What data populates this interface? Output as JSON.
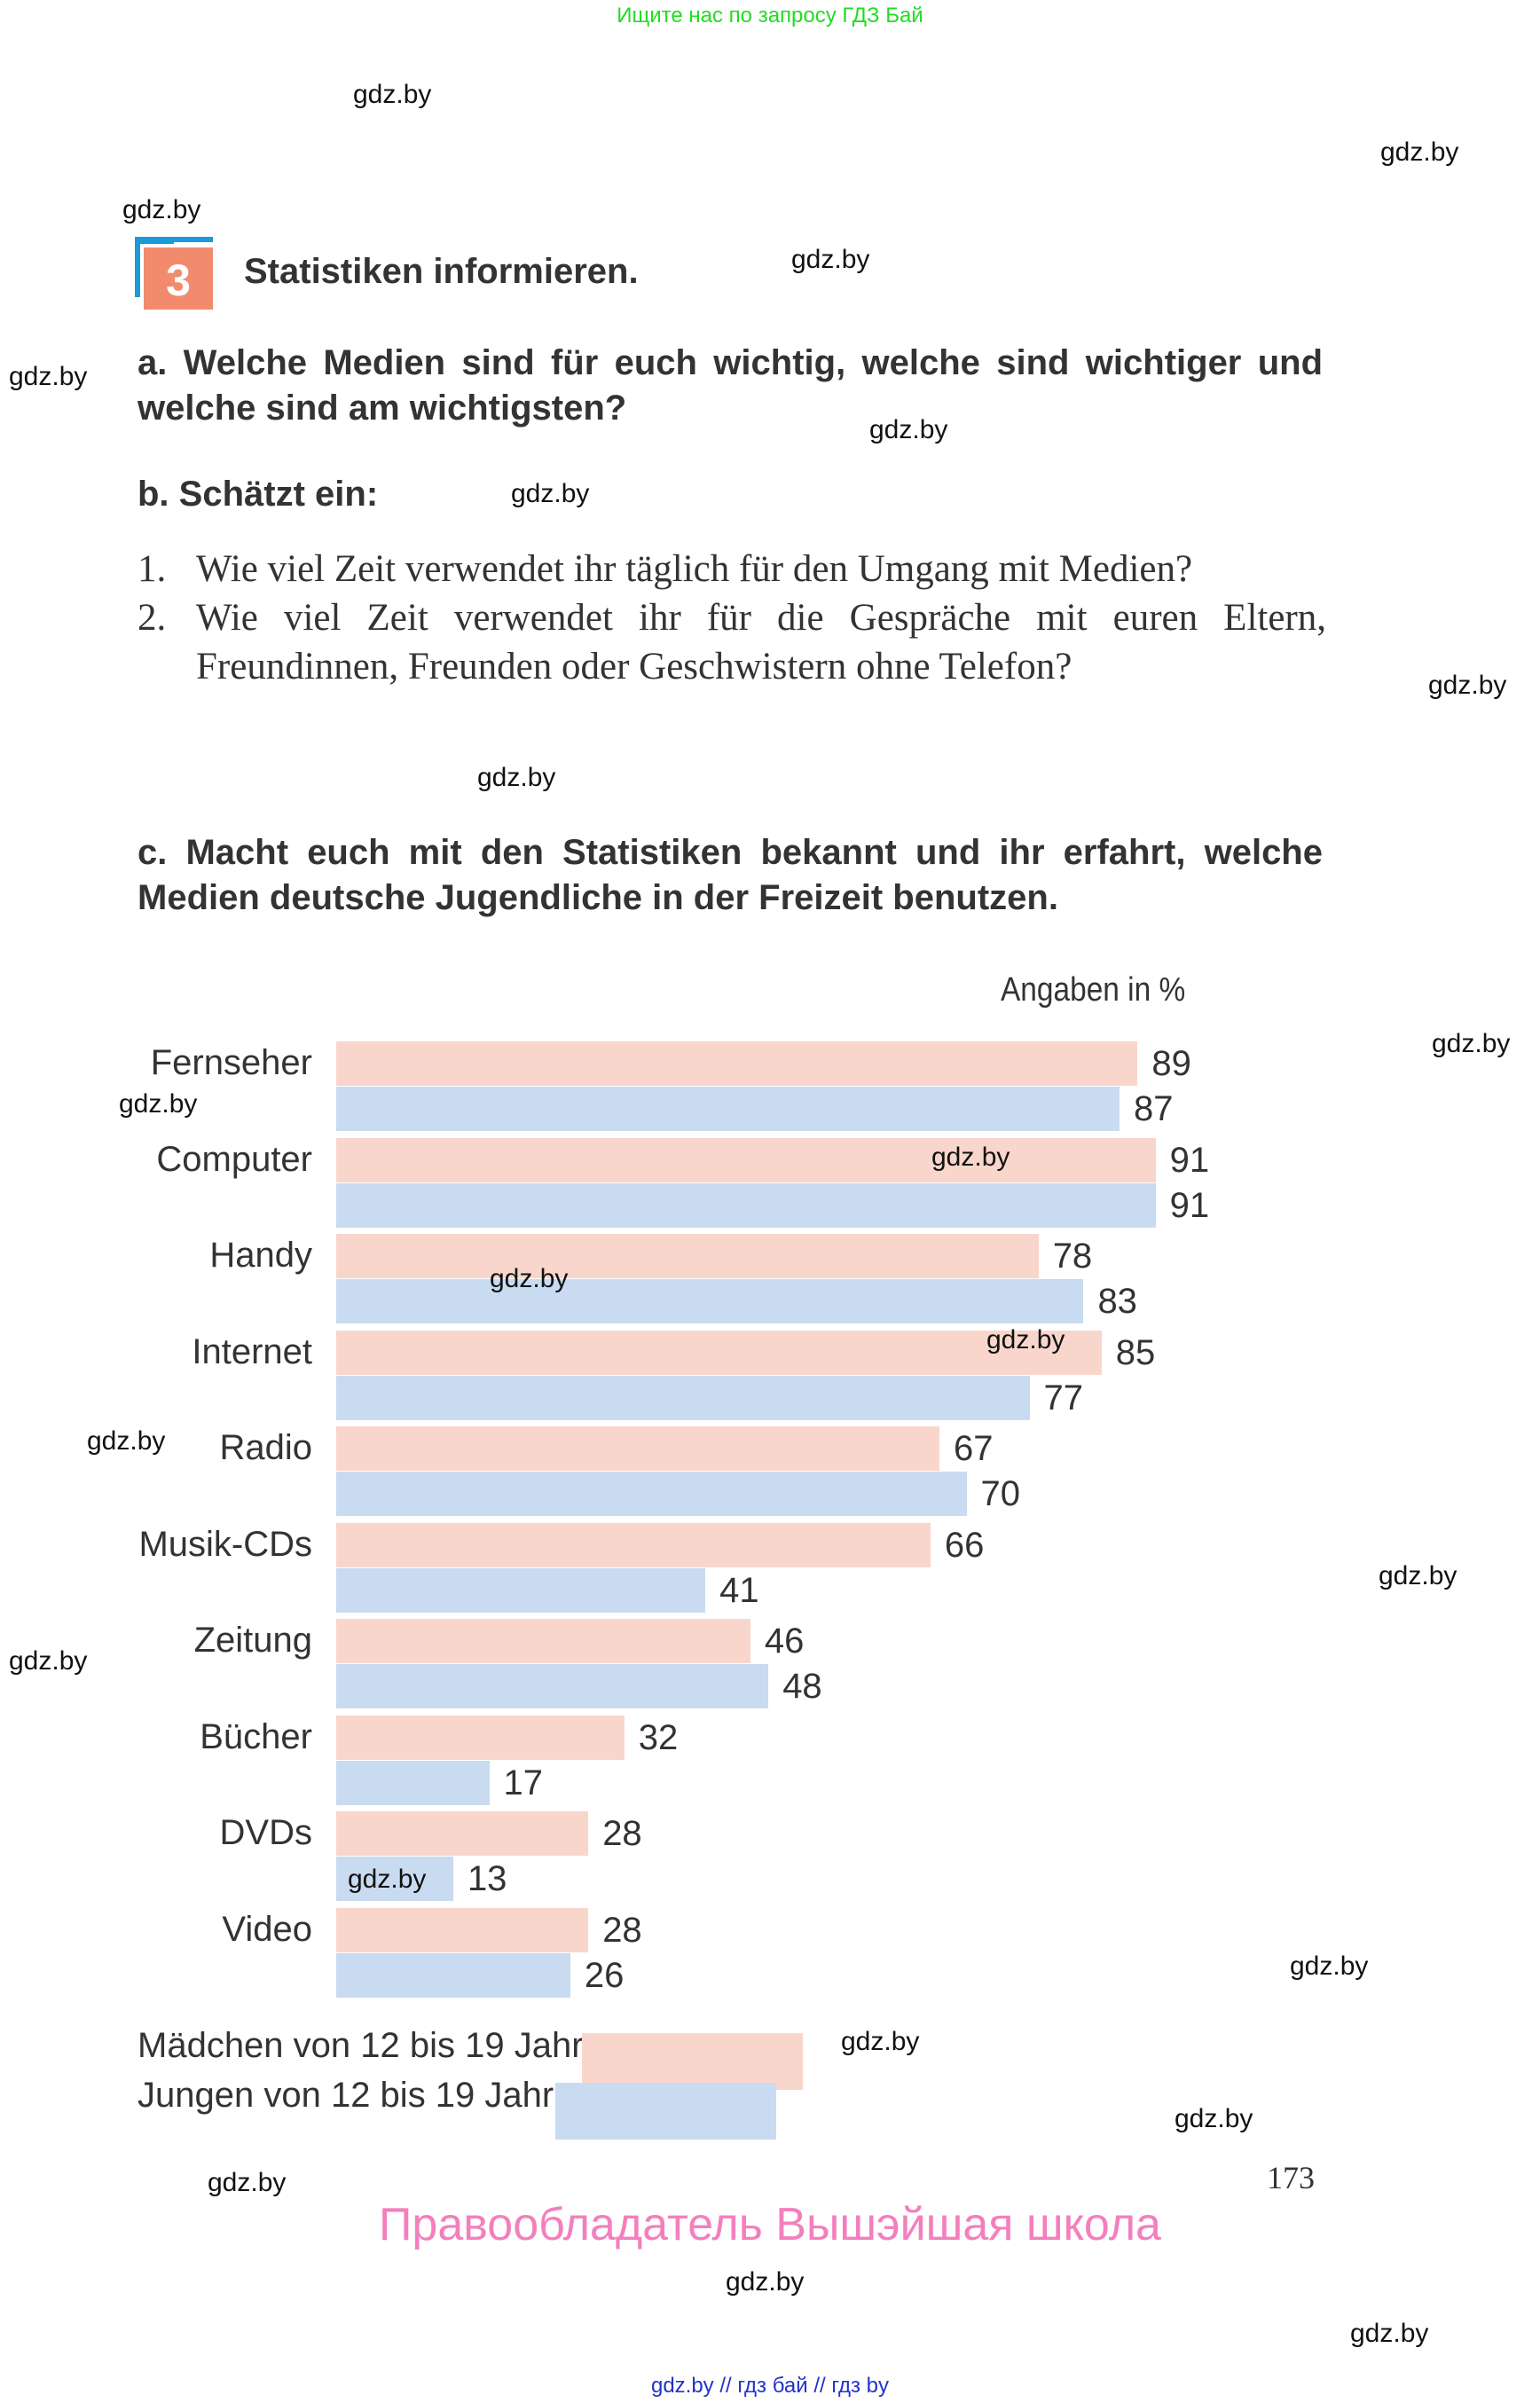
{
  "top_banner": "Ищите нас по запросу ГДЗ Бай",
  "task": {
    "number": "3",
    "title": "Statistiken informieren.",
    "a_text": "a. Welche Medien sind für euch wichtig, welche sind wichtiger und welche sind am wichtigsten?",
    "b_text": "b. Schätzt ein:",
    "b_items": [
      {
        "num": "1.",
        "text": "Wie viel Zeit verwendet ihr täglich für den Umgang mit Medien?"
      },
      {
        "num": "2.",
        "text": "Wie viel Zeit verwendet ihr für die Gespräche mit euren Eltern, Freundinnen, Freunden oder Geschwistern ohne Telefon?"
      }
    ],
    "c_text": "c. Macht euch mit den Statistiken bekannt und ihr erfahrt, welche Medien deutsche Jugendliche in der Freizeit benutzen."
  },
  "colors": {
    "girls": "#f9d6cc",
    "boys": "#c9dbf0",
    "badge": "#f28b6e",
    "badge_accent": "#1a9ad9",
    "copyright": "#f47fbd"
  },
  "chart_data": {
    "type": "bar",
    "orientation": "horizontal",
    "title": "",
    "unit_label": "Angaben in %",
    "xlabel": "",
    "ylabel": "",
    "xlim": [
      0,
      100
    ],
    "grid": false,
    "legend_position": "bottom-left",
    "categories": [
      "Fernseher",
      "Computer",
      "Handy",
      "Internet",
      "Radio",
      "Musik-CDs",
      "Zeitung",
      "Bücher",
      "DVDs",
      "Video"
    ],
    "series": [
      {
        "name": "Mädchen von 12 bis 19 Jahren",
        "color": "#f9d6cc",
        "values": [
          89,
          91,
          78,
          85,
          67,
          66,
          46,
          32,
          28,
          28
        ]
      },
      {
        "name": "Jungen von 12 bis 19 Jahren",
        "color": "#c9dbf0",
        "values": [
          87,
          91,
          83,
          77,
          70,
          41,
          48,
          17,
          13,
          26
        ]
      }
    ]
  },
  "legend": {
    "girls": "Mädchen von 12 bis 19 Jahren",
    "boys": "Jungen von 12 bis 19 Jahren"
  },
  "page_number": "173",
  "copyright": "Правообладатель Вышэйшая школа",
  "footer_links": "gdz.by  //  гдз бай  //  гдз by",
  "watermark": "gdz.by"
}
